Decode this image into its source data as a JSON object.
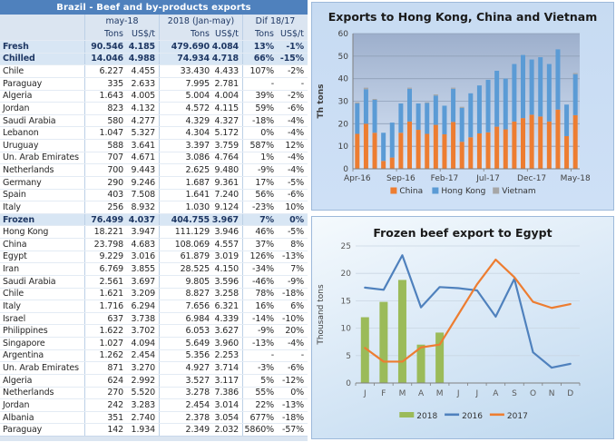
{
  "table": {
    "title": "Brazil - Beef and by-products exports",
    "col_groups": [
      "may-18",
      "2018 (Jan-may)",
      "Dif 18/17"
    ],
    "sub_headers": [
      "Tons",
      "US$/t",
      "Tons",
      "US$/t",
      "Tons",
      "US$/t"
    ],
    "rows": [
      {
        "name": "Fresh",
        "bold": true,
        "t1": "90.546",
        "p1": "4.185",
        "t2": "479.690",
        "p2": "4.084",
        "d1": "13%",
        "d2": "-1%"
      },
      {
        "name": "Chilled",
        "bold": true,
        "t1": "14.046",
        "p1": "4.988",
        "t2": "74.934",
        "p2": "4.718",
        "d1": "66%",
        "d2": "-15%"
      },
      {
        "name": "Chile",
        "t1": "6.227",
        "p1": "4.455",
        "t2": "33.430",
        "p2": "4.433",
        "d1": "107%",
        "d2": "-2%"
      },
      {
        "name": "Paraguay",
        "t1": "335",
        "p1": "2.633",
        "t2": "7.995",
        "p2": "2.781",
        "d1": "-",
        "d2": "-"
      },
      {
        "name": "Algeria",
        "t1": "1.643",
        "p1": "4.005",
        "t2": "5.004",
        "p2": "4.004",
        "d1": "39%",
        "d2": "-2%"
      },
      {
        "name": "Jordan",
        "t1": "823",
        "p1": "4.132",
        "t2": "4.572",
        "p2": "4.115",
        "d1": "59%",
        "d2": "-6%"
      },
      {
        "name": "Saudi Arabia",
        "t1": "580",
        "p1": "4.277",
        "t2": "4.329",
        "p2": "4.327",
        "d1": "-18%",
        "d2": "-4%"
      },
      {
        "name": "Lebanon",
        "t1": "1.047",
        "p1": "5.327",
        "t2": "4.304",
        "p2": "5.172",
        "d1": "0%",
        "d2": "-4%"
      },
      {
        "name": "Uruguay",
        "t1": "588",
        "p1": "3.641",
        "t2": "3.397",
        "p2": "3.759",
        "d1": "587%",
        "d2": "12%"
      },
      {
        "name": "Un. Arab Emirates",
        "t1": "707",
        "p1": "4.671",
        "t2": "3.086",
        "p2": "4.764",
        "d1": "1%",
        "d2": "-4%"
      },
      {
        "name": "Netherlands",
        "t1": "700",
        "p1": "9.443",
        "t2": "2.625",
        "p2": "9.480",
        "d1": "-9%",
        "d2": "-4%"
      },
      {
        "name": "Germany",
        "t1": "290",
        "p1": "9.246",
        "t2": "1.687",
        "p2": "9.361",
        "d1": "17%",
        "d2": "-5%"
      },
      {
        "name": "Spain",
        "t1": "403",
        "p1": "7.508",
        "t2": "1.641",
        "p2": "7.240",
        "d1": "56%",
        "d2": "-6%"
      },
      {
        "name": "Italy",
        "t1": "256",
        "p1": "8.932",
        "t2": "1.030",
        "p2": "9.124",
        "d1": "-23%",
        "d2": "10%"
      },
      {
        "name": "Frozen",
        "bold": true,
        "t1": "76.499",
        "p1": "4.037",
        "t2": "404.755",
        "p2": "3.967",
        "d1": "7%",
        "d2": "0%"
      },
      {
        "name": "Hong Kong",
        "t1": "18.221",
        "p1": "3.947",
        "t2": "111.129",
        "p2": "3.946",
        "d1": "46%",
        "d2": "-5%"
      },
      {
        "name": "China",
        "t1": "23.798",
        "p1": "4.683",
        "t2": "108.069",
        "p2": "4.557",
        "d1": "37%",
        "d2": "8%"
      },
      {
        "name": "Egypt",
        "t1": "9.229",
        "p1": "3.016",
        "t2": "61.879",
        "p2": "3.019",
        "d1": "126%",
        "d2": "-13%"
      },
      {
        "name": "Iran",
        "t1": "6.769",
        "p1": "3.855",
        "t2": "28.525",
        "p2": "4.150",
        "d1": "-34%",
        "d2": "7%"
      },
      {
        "name": "Saudi Arabia",
        "t1": "2.561",
        "p1": "3.697",
        "t2": "9.805",
        "p2": "3.596",
        "d1": "-46%",
        "d2": "-9%"
      },
      {
        "name": "Chile",
        "t1": "1.621",
        "p1": "3.209",
        "t2": "8.827",
        "p2": "3.258",
        "d1": "78%",
        "d2": "-18%"
      },
      {
        "name": "Italy",
        "t1": "1.716",
        "p1": "6.294",
        "t2": "7.656",
        "p2": "6.321",
        "d1": "16%",
        "d2": "6%"
      },
      {
        "name": "Israel",
        "t1": "637",
        "p1": "3.738",
        "t2": "6.984",
        "p2": "4.339",
        "d1": "-14%",
        "d2": "-10%"
      },
      {
        "name": "Philippines",
        "t1": "1.622",
        "p1": "3.702",
        "t2": "6.053",
        "p2": "3.627",
        "d1": "-9%",
        "d2": "20%"
      },
      {
        "name": "Singapore",
        "t1": "1.027",
        "p1": "4.094",
        "t2": "5.649",
        "p2": "3.960",
        "d1": "-13%",
        "d2": "-4%"
      },
      {
        "name": "Argentina",
        "t1": "1.262",
        "p1": "2.454",
        "t2": "5.356",
        "p2": "2.253",
        "d1": "-",
        "d2": "-"
      },
      {
        "name": "Un. Arab Emirates",
        "t1": "871",
        "p1": "3.270",
        "t2": "4.927",
        "p2": "3.714",
        "d1": "-3%",
        "d2": "-6%"
      },
      {
        "name": "Algeria",
        "t1": "624",
        "p1": "2.992",
        "t2": "3.527",
        "p2": "3.117",
        "d1": "5%",
        "d2": "-12%"
      },
      {
        "name": "Netherlands",
        "t1": "270",
        "p1": "5.520",
        "t2": "3.278",
        "p2": "7.386",
        "d1": "55%",
        "d2": "0%"
      },
      {
        "name": "Jordan",
        "t1": "242",
        "p1": "3.283",
        "t2": "2.454",
        "p2": "3.014",
        "d1": "22%",
        "d2": "-13%"
      },
      {
        "name": "Albania",
        "t1": "351",
        "p1": "2.740",
        "t2": "2.378",
        "p2": "3.054",
        "d1": "677%",
        "d2": "-18%"
      },
      {
        "name": "Paraguay",
        "t1": "142",
        "p1": "1.934",
        "t2": "2.349",
        "p2": "2.032",
        "d1": "5860%",
        "d2": "-57%"
      }
    ]
  },
  "chart_data": [
    {
      "type": "bar",
      "stacked": true,
      "title": "Exports to Hong Kong, China and Vietnam",
      "ylabel": "Th tons",
      "ylim": [
        0,
        60
      ],
      "ytick_step": 10,
      "grid": true,
      "legend_position": "bottom",
      "categories": [
        "Apr-16",
        "May-16",
        "Jun-16",
        "Jul-16",
        "Aug-16",
        "Sep-16",
        "Oct-16",
        "Nov-16",
        "Dec-16",
        "Jan-17",
        "Feb-17",
        "Mar-17",
        "Apr-17",
        "May-17",
        "Jun-17",
        "Jul-17",
        "Aug-17",
        "Sep-17",
        "Oct-17",
        "Nov-17",
        "Dec-17",
        "Jan-18",
        "Feb-18",
        "Mar-18",
        "Apr-18",
        "May-18"
      ],
      "xtick_every": 5,
      "xtick_labels": [
        "Apr-16",
        "Sep-16",
        "Feb-17",
        "Jul-17",
        "Dec-17",
        "May-18"
      ],
      "series": [
        {
          "name": "China",
          "color": "#ED7D31",
          "values": [
            15.5,
            20,
            16,
            3.5,
            5,
            16,
            21,
            17.3,
            15.5,
            19.5,
            15.3,
            20.8,
            12,
            14,
            15.7,
            16.2,
            18.7,
            17.5,
            21,
            22.5,
            24,
            23.2,
            21,
            26.3,
            14.5,
            23.8
          ]
        },
        {
          "name": "Hong Kong",
          "color": "#5B9BD5",
          "values": [
            13.5,
            15.3,
            14.6,
            12.5,
            15.5,
            13,
            14.5,
            11.7,
            13.7,
            13,
            12.7,
            14.7,
            15,
            19.5,
            21.3,
            23.3,
            24.8,
            22.5,
            25.5,
            28,
            24.5,
            26.3,
            25.5,
            26.7,
            14,
            18.2
          ]
        },
        {
          "name": "Vietnam",
          "color": "#A6A6A6",
          "values": [
            0.5,
            0.7,
            0.4,
            0,
            0,
            0,
            0.5,
            0,
            0.3,
            0.5,
            0,
            0.5,
            0.5,
            0,
            0,
            0,
            0,
            0,
            0,
            0,
            0,
            0,
            0,
            0,
            0,
            0.5
          ]
        }
      ]
    },
    {
      "type": "combo",
      "title": "Frozen beef export to Egypt",
      "ylabel": "Thousand tons",
      "ylim": [
        0,
        25
      ],
      "ytick_step": 5,
      "grid": true,
      "legend_position": "bottom",
      "categories": [
        "J",
        "F",
        "M",
        "A",
        "M",
        "J",
        "J",
        "A",
        "S",
        "O",
        "N",
        "D"
      ],
      "series": [
        {
          "name": "2018",
          "type": "bar",
          "color": "#9BBB59",
          "values": [
            12,
            14.8,
            18.8,
            7,
            9.2,
            null,
            null,
            null,
            null,
            null,
            null,
            null
          ]
        },
        {
          "name": "2016",
          "type": "line",
          "color": "#4F81BD",
          "values": [
            17.4,
            17,
            23.3,
            13.8,
            17.5,
            17.3,
            16.9,
            12.1,
            19,
            5.6,
            2.8,
            3.5
          ]
        },
        {
          "name": "2017",
          "type": "line",
          "color": "#ED7D31",
          "values": [
            6.4,
            3.9,
            3.9,
            6.5,
            7,
            12.5,
            18,
            22.5,
            19.3,
            14.8,
            13.7,
            14.4
          ]
        }
      ]
    }
  ]
}
